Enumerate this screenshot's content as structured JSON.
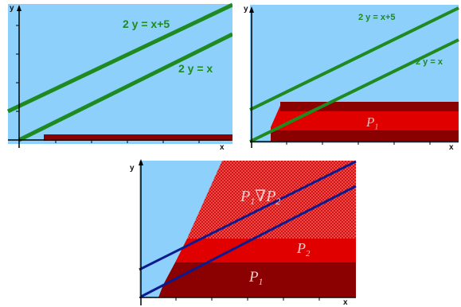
{
  "colors": {
    "sky": "#8dd0fb",
    "dark_red": "#8b0000",
    "red": "#e00000",
    "green_line": "#1f8a1f",
    "blue_line": "#0c1a8f",
    "axis": "#000000",
    "pattern_light": "#f07a7a"
  },
  "panels": [
    {
      "axis_x": "x",
      "axis_y": "y",
      "line_a_label": "2 y = x+5",
      "line_b_label": "2 y = x"
    },
    {
      "axis_x": "x",
      "axis_y": "y",
      "line_a_label": "2 y = x+5",
      "line_b_label": "2 y = x",
      "region_label": {
        "base": "P",
        "sub": "1"
      }
    },
    {
      "axis_x": "x",
      "axis_y": "y",
      "region_p1": {
        "base": "P",
        "sub": "1"
      },
      "region_p2": {
        "base": "P",
        "sub": "2"
      },
      "region_union": {
        "base1": "P",
        "sub1": "1",
        "op": "∇",
        "base2": "P",
        "sub2": "2"
      }
    }
  ]
}
